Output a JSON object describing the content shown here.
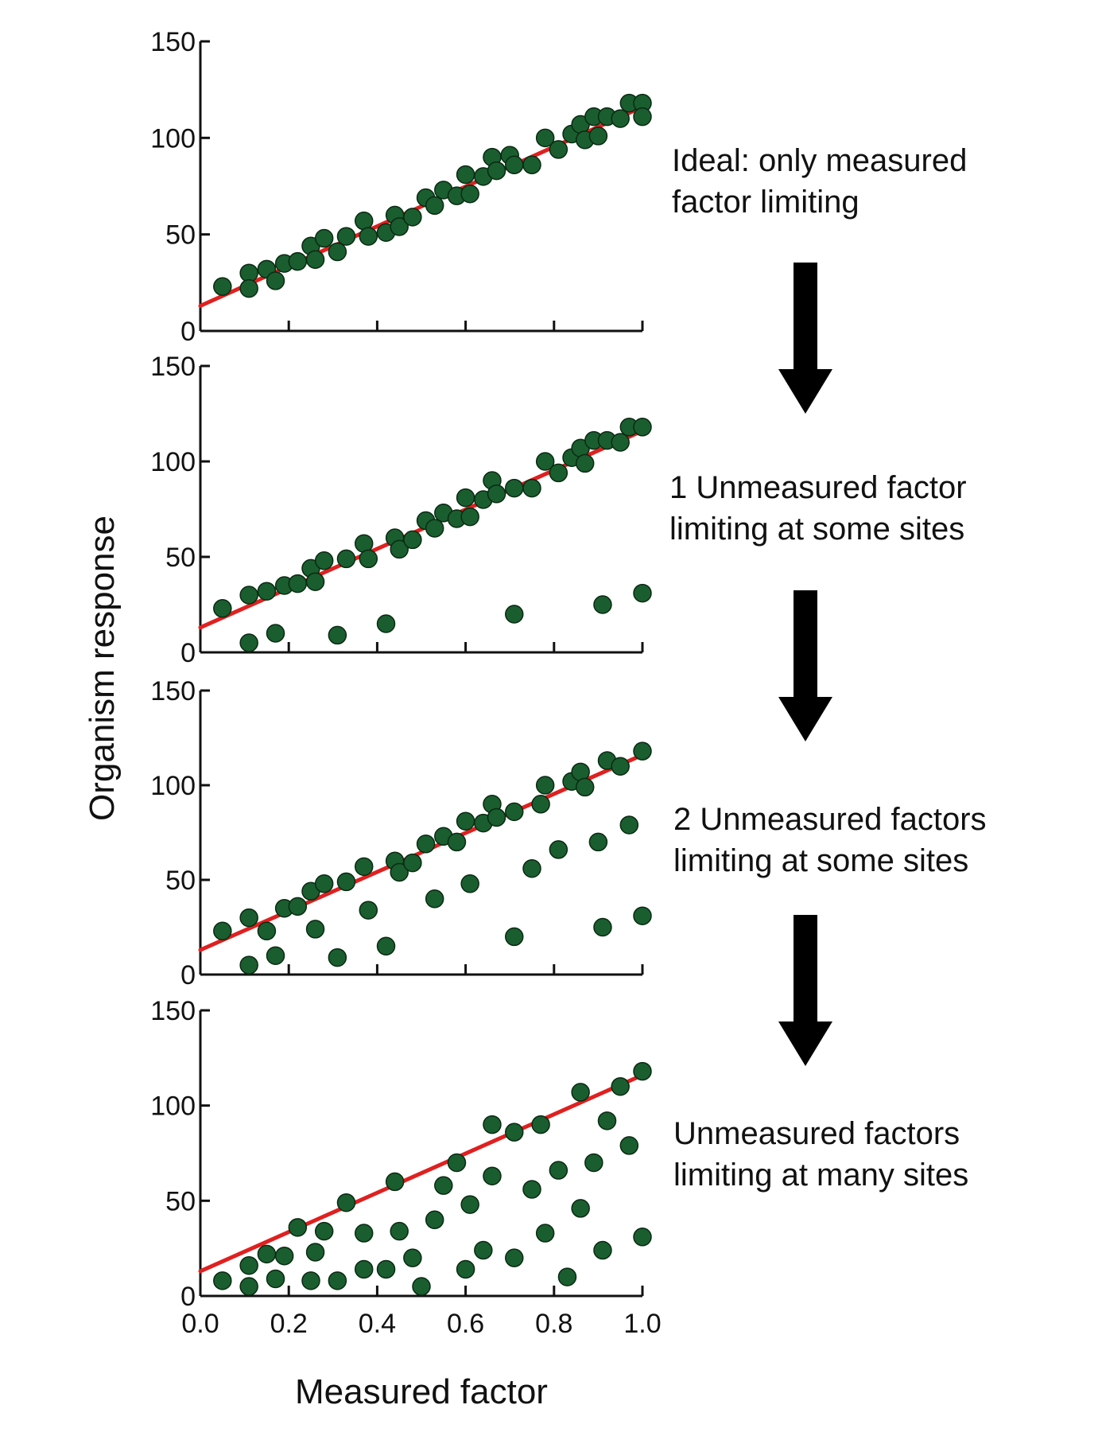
{
  "captions": [
    {
      "line1": "Ideal: only measured",
      "line2": "factor limiting"
    },
    {
      "line1": "1 Unmeasured factor",
      "line2": "limiting at some sites"
    },
    {
      "line1": "2 Unmeasured factors",
      "line2": "limiting at some sites"
    },
    {
      "line1": "Unmeasured factors",
      "line2": "limiting at many sites"
    }
  ],
  "arrow_icon": "down-arrow-icon",
  "colors": {
    "points": "#1a5e2f",
    "point_edge": "#0a2a12",
    "fit_line": "#e02020",
    "axis": "#111111",
    "arrow": "#000000"
  },
  "chart_data": {
    "type": "scatter",
    "panels": [
      {
        "points": [
          [
            0.05,
            23
          ],
          [
            0.11,
            30
          ],
          [
            0.11,
            22
          ],
          [
            0.15,
            32
          ],
          [
            0.17,
            26
          ],
          [
            0.19,
            35
          ],
          [
            0.22,
            36
          ],
          [
            0.25,
            44
          ],
          [
            0.26,
            37
          ],
          [
            0.28,
            48
          ],
          [
            0.31,
            41
          ],
          [
            0.33,
            49
          ],
          [
            0.37,
            57
          ],
          [
            0.38,
            49
          ],
          [
            0.42,
            51
          ],
          [
            0.44,
            60
          ],
          [
            0.45,
            54
          ],
          [
            0.48,
            59
          ],
          [
            0.51,
            69
          ],
          [
            0.53,
            65
          ],
          [
            0.55,
            73
          ],
          [
            0.58,
            70
          ],
          [
            0.6,
            81
          ],
          [
            0.61,
            71
          ],
          [
            0.64,
            80
          ],
          [
            0.66,
            90
          ],
          [
            0.67,
            83
          ],
          [
            0.7,
            91
          ],
          [
            0.71,
            86
          ],
          [
            0.75,
            86
          ],
          [
            0.78,
            100
          ],
          [
            0.81,
            94
          ],
          [
            0.84,
            102
          ],
          [
            0.86,
            107
          ],
          [
            0.87,
            99
          ],
          [
            0.89,
            111
          ],
          [
            0.9,
            101
          ],
          [
            0.92,
            111
          ],
          [
            0.95,
            110
          ],
          [
            0.97,
            118
          ],
          [
            1.0,
            118
          ],
          [
            1.0,
            111
          ]
        ]
      },
      {
        "points": [
          [
            0.05,
            23
          ],
          [
            0.11,
            30
          ],
          [
            0.11,
            5
          ],
          [
            0.15,
            32
          ],
          [
            0.17,
            10
          ],
          [
            0.19,
            35
          ],
          [
            0.22,
            36
          ],
          [
            0.25,
            44
          ],
          [
            0.26,
            37
          ],
          [
            0.28,
            48
          ],
          [
            0.31,
            9
          ],
          [
            0.33,
            49
          ],
          [
            0.37,
            57
          ],
          [
            0.38,
            49
          ],
          [
            0.42,
            15
          ],
          [
            0.44,
            60
          ],
          [
            0.45,
            54
          ],
          [
            0.48,
            59
          ],
          [
            0.51,
            69
          ],
          [
            0.53,
            65
          ],
          [
            0.55,
            73
          ],
          [
            0.58,
            70
          ],
          [
            0.6,
            81
          ],
          [
            0.61,
            71
          ],
          [
            0.64,
            80
          ],
          [
            0.66,
            90
          ],
          [
            0.67,
            83
          ],
          [
            0.71,
            20
          ],
          [
            0.71,
            86
          ],
          [
            0.75,
            86
          ],
          [
            0.78,
            100
          ],
          [
            0.81,
            94
          ],
          [
            0.84,
            102
          ],
          [
            0.86,
            107
          ],
          [
            0.87,
            99
          ],
          [
            0.89,
            111
          ],
          [
            0.91,
            25
          ],
          [
            0.92,
            111
          ],
          [
            0.95,
            110
          ],
          [
            0.97,
            118
          ],
          [
            1.0,
            118
          ],
          [
            1.0,
            31
          ]
        ]
      },
      {
        "points": [
          [
            0.05,
            23
          ],
          [
            0.11,
            30
          ],
          [
            0.11,
            5
          ],
          [
            0.15,
            23
          ],
          [
            0.17,
            10
          ],
          [
            0.19,
            35
          ],
          [
            0.22,
            36
          ],
          [
            0.25,
            44
          ],
          [
            0.26,
            24
          ],
          [
            0.28,
            48
          ],
          [
            0.31,
            9
          ],
          [
            0.33,
            49
          ],
          [
            0.37,
            57
          ],
          [
            0.38,
            34
          ],
          [
            0.42,
            15
          ],
          [
            0.44,
            60
          ],
          [
            0.45,
            54
          ],
          [
            0.48,
            59
          ],
          [
            0.51,
            69
          ],
          [
            0.53,
            40
          ],
          [
            0.55,
            73
          ],
          [
            0.58,
            70
          ],
          [
            0.6,
            81
          ],
          [
            0.61,
            48
          ],
          [
            0.64,
            80
          ],
          [
            0.66,
            90
          ],
          [
            0.67,
            83
          ],
          [
            0.71,
            20
          ],
          [
            0.71,
            86
          ],
          [
            0.75,
            56
          ],
          [
            0.78,
            100
          ],
          [
            0.77,
            90
          ],
          [
            0.81,
            66
          ],
          [
            0.84,
            102
          ],
          [
            0.86,
            107
          ],
          [
            0.87,
            99
          ],
          [
            0.9,
            70
          ],
          [
            0.91,
            25
          ],
          [
            0.92,
            113
          ],
          [
            0.95,
            110
          ],
          [
            0.97,
            79
          ],
          [
            1.0,
            118
          ],
          [
            1.0,
            31
          ]
        ]
      },
      {
        "points": [
          [
            0.05,
            8
          ],
          [
            0.11,
            16
          ],
          [
            0.11,
            5
          ],
          [
            0.15,
            22
          ],
          [
            0.17,
            9
          ],
          [
            0.19,
            21
          ],
          [
            0.22,
            36
          ],
          [
            0.25,
            8
          ],
          [
            0.26,
            23
          ],
          [
            0.28,
            34
          ],
          [
            0.31,
            8
          ],
          [
            0.33,
            49
          ],
          [
            0.37,
            33
          ],
          [
            0.37,
            14
          ],
          [
            0.42,
            14
          ],
          [
            0.44,
            60
          ],
          [
            0.45,
            34
          ],
          [
            0.48,
            20
          ],
          [
            0.5,
            5
          ],
          [
            0.53,
            40
          ],
          [
            0.55,
            58
          ],
          [
            0.58,
            70
          ],
          [
            0.6,
            14
          ],
          [
            0.61,
            48
          ],
          [
            0.64,
            24
          ],
          [
            0.66,
            63
          ],
          [
            0.66,
            90
          ],
          [
            0.71,
            86
          ],
          [
            0.71,
            20
          ],
          [
            0.75,
            56
          ],
          [
            0.77,
            90
          ],
          [
            0.78,
            33
          ],
          [
            0.81,
            66
          ],
          [
            0.83,
            10
          ],
          [
            0.86,
            107
          ],
          [
            0.86,
            46
          ],
          [
            0.89,
            70
          ],
          [
            0.91,
            24
          ],
          [
            0.92,
            92
          ],
          [
            0.95,
            110
          ],
          [
            0.97,
            79
          ],
          [
            1.0,
            118
          ],
          [
            1.0,
            31
          ]
        ]
      }
    ],
    "fit_line": {
      "intercept": 13,
      "slope": 103
    },
    "xlabel": "Measured factor",
    "ylabel": "Organism response",
    "xlim": [
      0,
      1.0
    ],
    "ylim": [
      0,
      150
    ],
    "x_tick_labels": [
      "0.0",
      "0.2",
      "0.4",
      "0.6",
      "0.8",
      "1.0"
    ],
    "y_tick_labels": [
      "0",
      "50",
      "100",
      "150"
    ],
    "grid": false
  }
}
